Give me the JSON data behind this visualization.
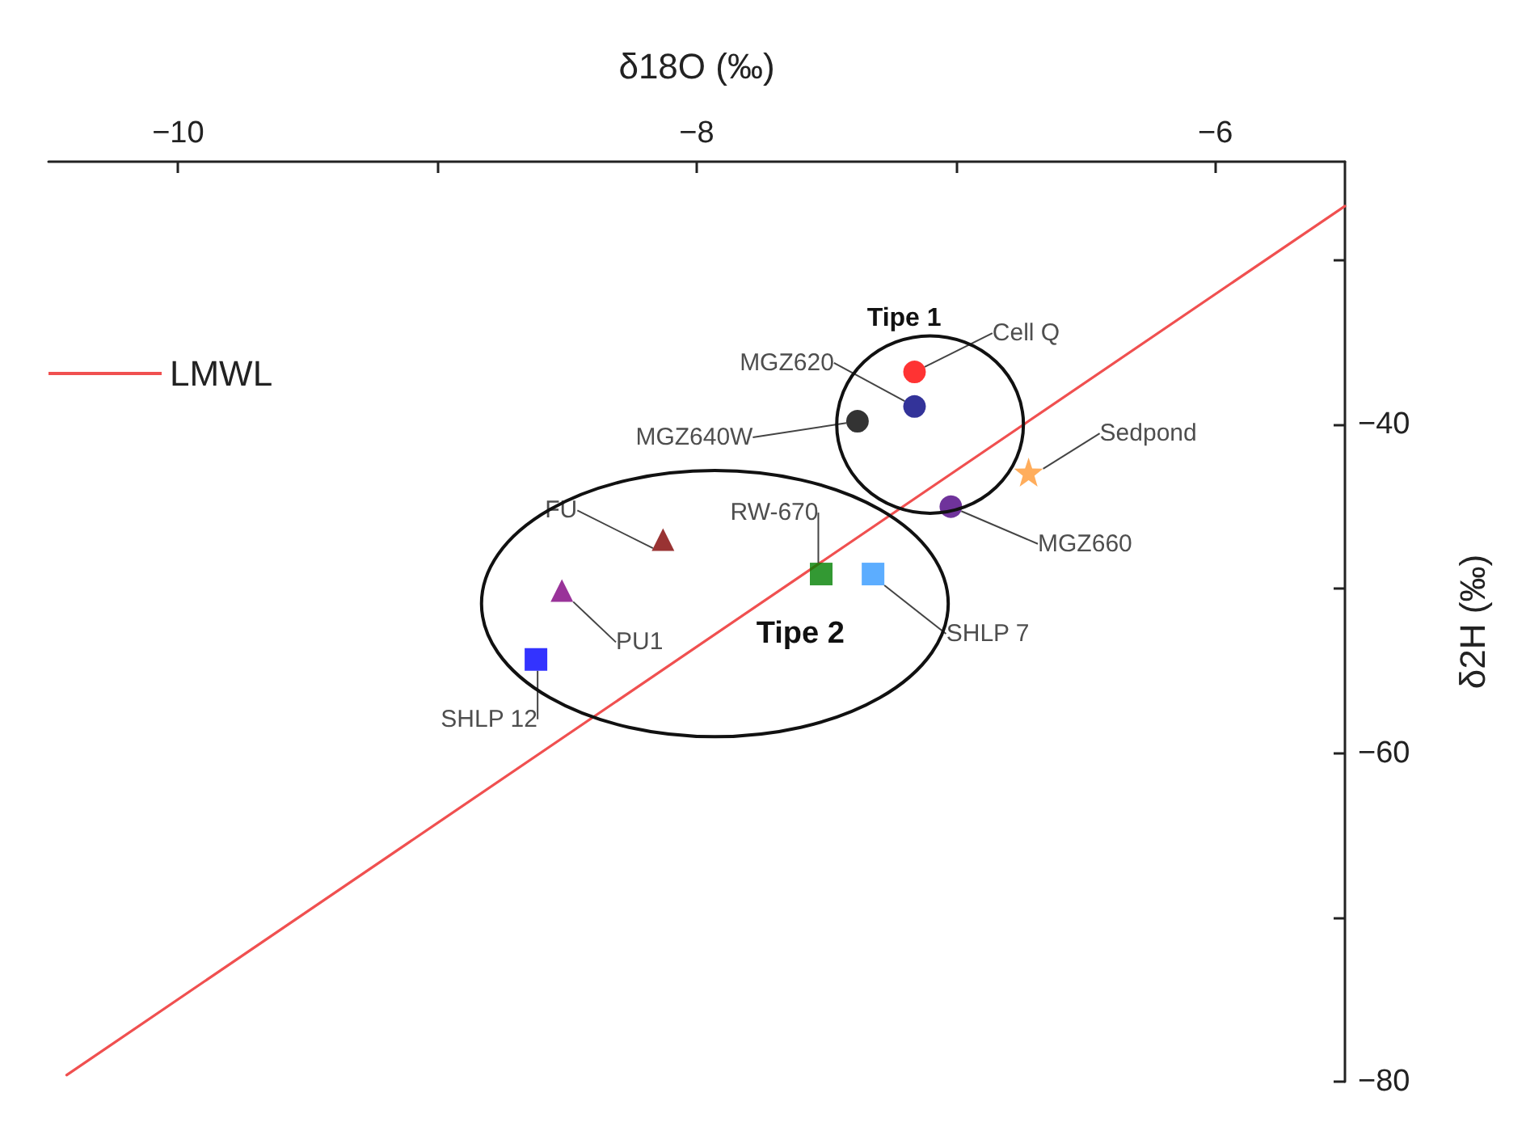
{
  "chart_data": {
    "type": "scatter",
    "xlabel": "δ18O (‰)",
    "ylabel": "δ2H (‰)",
    "xlim": [
      -10.5,
      -5.5
    ],
    "xticks": [
      -10,
      {
        "value": -9,
        "label": null
      },
      -8,
      {
        "value": -7,
        "label": null
      },
      -6
    ],
    "ylim": [
      -80,
      -24
    ],
    "yticks": [
      -80,
      {
        "value": -70,
        "label": null
      },
      -60,
      {
        "value": -50,
        "label": null
      },
      -40,
      {
        "value": -30,
        "label": null
      }
    ],
    "grid": false,
    "legend": "top left",
    "annotations": [
      "Tipe 1",
      "Tipe 2"
    ],
    "series": [
      {
        "name": "LMWL",
        "type": "line",
        "color": "#f05050",
        "marker": "none",
        "x": [
          -10.43,
          -5.5
        ],
        "values": [
          -79.6,
          -26.7
        ]
      },
      {
        "name": "Cell Q",
        "color": "#ff0000",
        "marker": "circle",
        "x": [
          -7.16
        ],
        "values": [
          -36.8
        ]
      },
      {
        "name": "MGZ620",
        "color": "#000080",
        "marker": "circle",
        "x": [
          -7.16
        ],
        "values": [
          -38.9
        ]
      },
      {
        "name": "MGZ640W",
        "color": "#000000",
        "marker": "circle",
        "x": [
          -7.38
        ],
        "values": [
          -39.8
        ]
      },
      {
        "name": "Sedpond",
        "color": "#ff9933",
        "marker": "star",
        "x": [
          -6.72
        ],
        "values": [
          -42.9
        ]
      },
      {
        "name": "MGZ660",
        "color": "#4b0082",
        "marker": "circle",
        "x": [
          -7.02
        ],
        "values": [
          -45.0
        ]
      },
      {
        "name": "FU",
        "color": "#800000",
        "marker": "triangle",
        "x": [
          -8.13
        ],
        "values": [
          -47.0
        ]
      },
      {
        "name": "RW-670",
        "color": "#008000",
        "marker": "square",
        "x": [
          -7.52
        ],
        "values": [
          -49.1
        ]
      },
      {
        "name": "SHLP 7",
        "color": "#3399ff",
        "marker": "square",
        "x": [
          -7.32
        ],
        "values": [
          -49.1
        ]
      },
      {
        "name": "PU1",
        "color": "#800080",
        "marker": "triangle",
        "x": [
          -8.52
        ],
        "values": [
          -50.1
        ]
      },
      {
        "name": "SHLP 12",
        "color": "#0000ff",
        "marker": "square",
        "x": [
          -8.62
        ],
        "values": [
          -54.3
        ]
      }
    ]
  }
}
